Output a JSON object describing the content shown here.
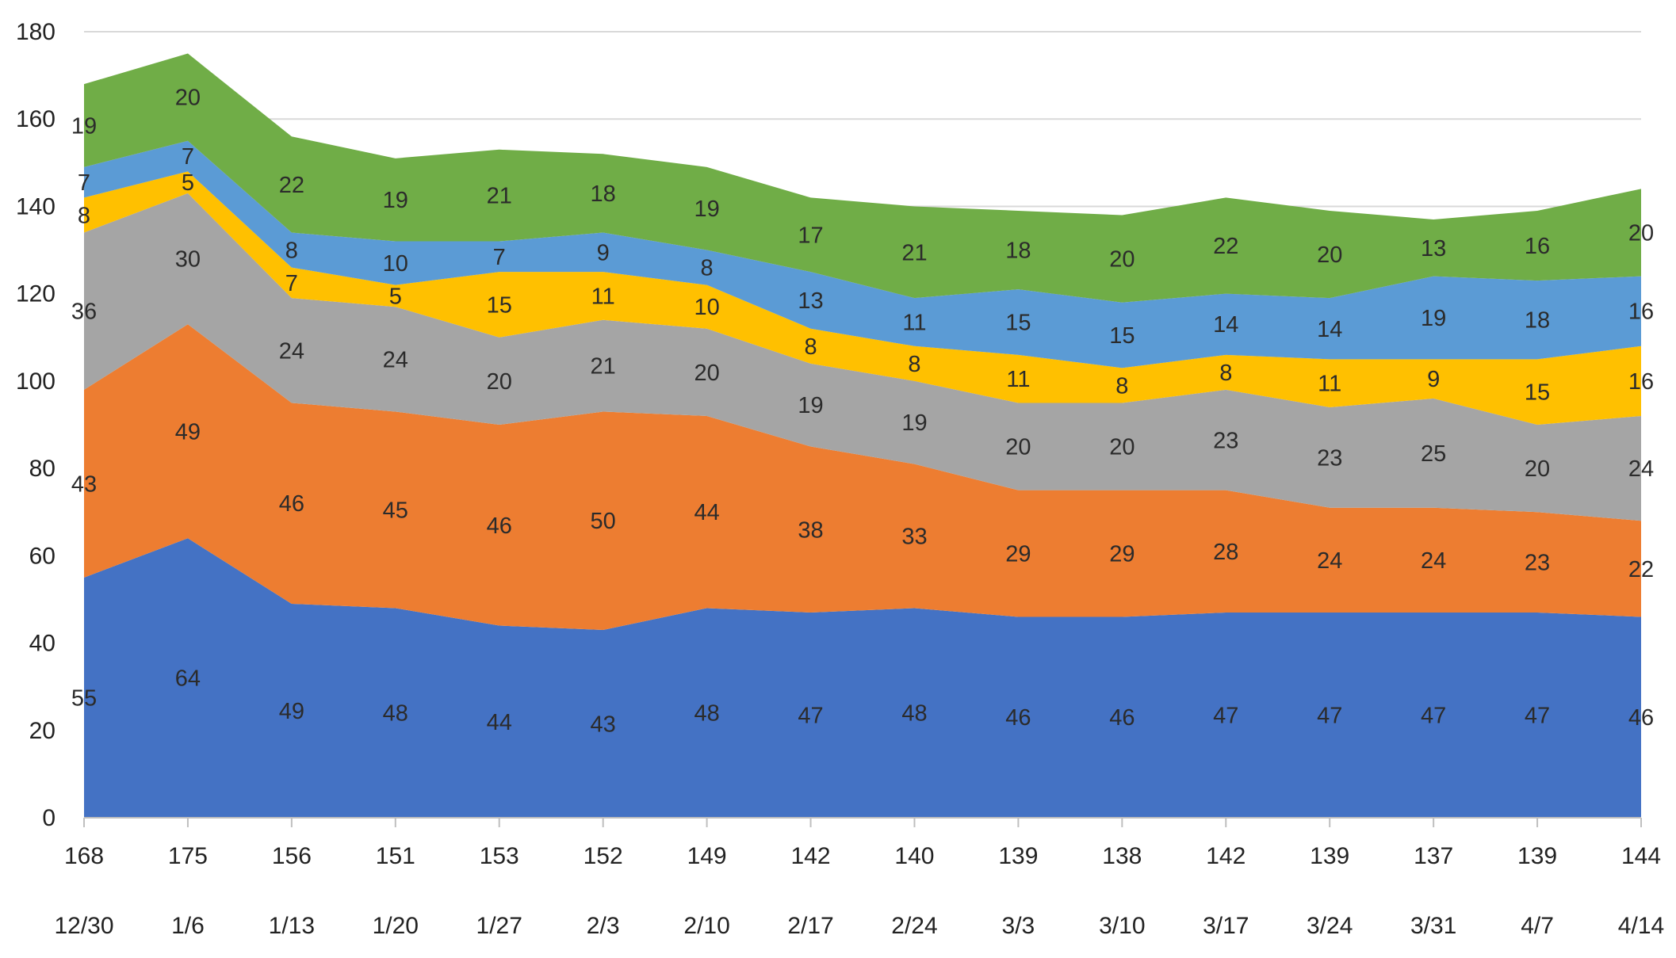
{
  "chart_data": {
    "type": "area",
    "stacked": true,
    "title": "",
    "xlabel": "",
    "ylabel": "",
    "ylim": [
      0,
      180
    ],
    "y_ticks": [
      0,
      20,
      40,
      60,
      80,
      100,
      120,
      140,
      160,
      180
    ],
    "grid": true,
    "legend": "none",
    "categories": [
      "12/30",
      "1/6",
      "1/13",
      "1/20",
      "1/27",
      "2/3",
      "2/10",
      "2/17",
      "2/24",
      "3/3",
      "3/10",
      "3/17",
      "3/24",
      "3/31",
      "4/7",
      "4/14"
    ],
    "totals": [
      168,
      175,
      156,
      151,
      153,
      152,
      149,
      142,
      140,
      139,
      138,
      142,
      139,
      137,
      139,
      144
    ],
    "series": [
      {
        "color": "#4472c4",
        "values": [
          55,
          64,
          49,
          48,
          44,
          43,
          48,
          47,
          48,
          46,
          46,
          47,
          47,
          47,
          47,
          46
        ]
      },
      {
        "color": "#ed7d31",
        "values": [
          43,
          49,
          46,
          45,
          46,
          50,
          44,
          38,
          33,
          29,
          29,
          28,
          24,
          24,
          23,
          22
        ]
      },
      {
        "color": "#a5a5a5",
        "values": [
          36,
          30,
          24,
          24,
          20,
          21,
          20,
          19,
          19,
          20,
          20,
          23,
          23,
          25,
          20,
          24
        ]
      },
      {
        "color": "#ffc000",
        "values": [
          8,
          5,
          7,
          5,
          15,
          11,
          10,
          8,
          8,
          11,
          8,
          8,
          11,
          9,
          15,
          16
        ]
      },
      {
        "color": "#5b9bd5",
        "values": [
          7,
          7,
          8,
          10,
          7,
          9,
          8,
          13,
          11,
          15,
          15,
          14,
          14,
          19,
          18,
          16
        ]
      },
      {
        "color": "#70ad47",
        "values": [
          19,
          20,
          22,
          19,
          21,
          18,
          19,
          17,
          21,
          18,
          20,
          22,
          20,
          13,
          16,
          20
        ]
      }
    ]
  }
}
